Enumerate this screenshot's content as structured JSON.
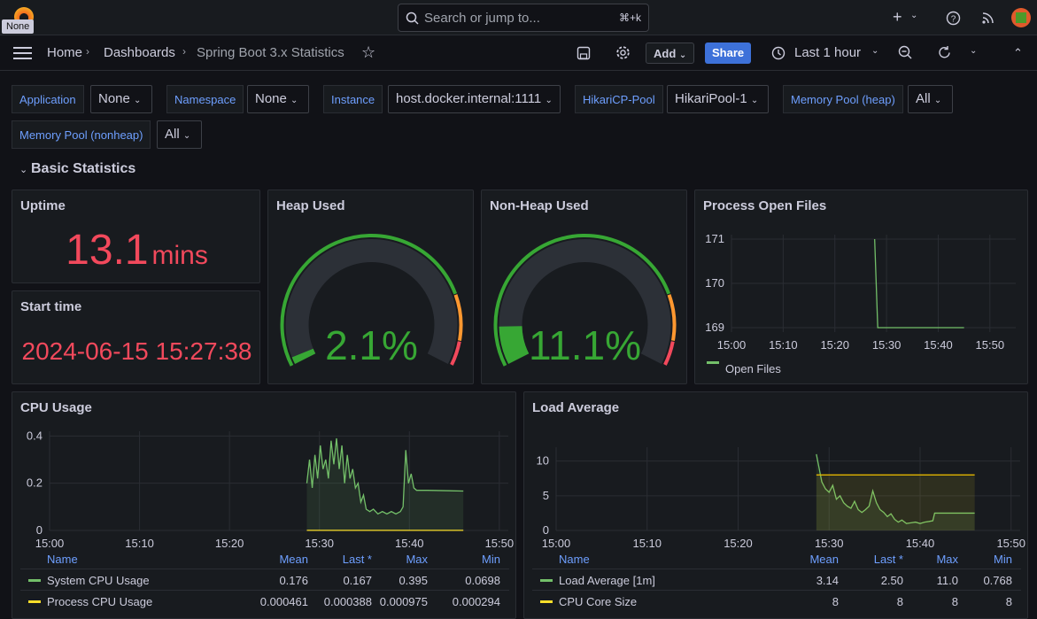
{
  "tooltip": "None",
  "search": {
    "placeholder": "Search or jump to...",
    "shortcut": "⌘+k"
  },
  "breadcrumb": {
    "home": "Home",
    "dashboards": "Dashboards",
    "current": "Spring Boot 3.x Statistics"
  },
  "toolbar": {
    "add": "Add",
    "share": "Share",
    "time_range": "Last 1 hour"
  },
  "variables": [
    {
      "label": "Application",
      "value": "None"
    },
    {
      "label": "Namespace",
      "value": "None"
    },
    {
      "label": "Instance",
      "value": "host.docker.internal:1111"
    },
    {
      "label": "HikariCP-Pool",
      "value": "HikariPool-1"
    },
    {
      "label": "Memory Pool (heap)",
      "value": "All"
    },
    {
      "label": "Memory Pool (nonheap)",
      "value": "All"
    }
  ],
  "row_title": "Basic Statistics",
  "panels": {
    "uptime": {
      "title": "Uptime",
      "value": "13.1",
      "unit": "mins"
    },
    "start_time": {
      "title": "Start time",
      "value": "2024-06-15 15:27:38"
    },
    "heap": {
      "title": "Heap Used",
      "value": "2.1%",
      "percent": 2.1
    },
    "nonheap": {
      "title": "Non-Heap Used",
      "value": "11.1%",
      "percent": 11.1
    },
    "open_files": {
      "title": "Process Open Files",
      "legend": "Open Files"
    },
    "cpu": {
      "title": "CPU Usage"
    },
    "load": {
      "title": "Load Average"
    }
  },
  "colors": {
    "green": "#73bf69",
    "yellow": "#fade2a",
    "red": "#f2495c",
    "blue": "#6e9fff",
    "orange": "#ff9830"
  },
  "chart_data": [
    {
      "type": "line",
      "title": "Process Open Files",
      "x": [
        "15:00",
        "15:10",
        "15:20",
        "15:30",
        "15:40",
        "15:50"
      ],
      "yticks": [
        169,
        170,
        171
      ],
      "ylim": [
        168.9,
        171.1
      ],
      "xlim_minutes": [
        0,
        50
      ],
      "series": [
        {
          "name": "Open Files",
          "points": [
            [
              27.7,
              171
            ],
            [
              28.3,
              169
            ],
            [
              45,
              169
            ]
          ]
        }
      ]
    },
    {
      "type": "line",
      "title": "CPU Usage",
      "x": [
        "15:00",
        "15:10",
        "15:20",
        "15:30",
        "15:40",
        "15:50"
      ],
      "yticks": [
        "0",
        "0.2",
        "0.4"
      ],
      "ylim": [
        0,
        0.42
      ],
      "xlim_minutes": [
        0,
        51
      ],
      "legend_headers": [
        "Name",
        "Mean",
        "Last *",
        "Max",
        "Min"
      ],
      "series": [
        {
          "name": "System CPU Usage",
          "mean": "0.176",
          "last": "0.167",
          "max": "0.395",
          "min": "0.0698",
          "points": [
            [
              28.6,
              0.2
            ],
            [
              28.9,
              0.3
            ],
            [
              29.2,
              0.18
            ],
            [
              29.5,
              0.32
            ],
            [
              29.8,
              0.22
            ],
            [
              30.1,
              0.36
            ],
            [
              30.4,
              0.26
            ],
            [
              30.7,
              0.3
            ],
            [
              31.0,
              0.22
            ],
            [
              31.3,
              0.38
            ],
            [
              31.6,
              0.28
            ],
            [
              31.9,
              0.39
            ],
            [
              32.2,
              0.26
            ],
            [
              32.5,
              0.36
            ],
            [
              32.8,
              0.2
            ],
            [
              33.1,
              0.32
            ],
            [
              33.4,
              0.22
            ],
            [
              33.7,
              0.26
            ],
            [
              34.0,
              0.18
            ],
            [
              34.3,
              0.2
            ],
            [
              34.6,
              0.12
            ],
            [
              34.9,
              0.15
            ],
            [
              35.2,
              0.09
            ],
            [
              35.6,
              0.08
            ],
            [
              36.0,
              0.09
            ],
            [
              36.5,
              0.07
            ],
            [
              37.0,
              0.08
            ],
            [
              37.5,
              0.07
            ],
            [
              38.0,
              0.08
            ],
            [
              38.5,
              0.07
            ],
            [
              39.0,
              0.08
            ],
            [
              39.3,
              0.1
            ],
            [
              39.6,
              0.34
            ],
            [
              39.9,
              0.2
            ],
            [
              40.2,
              0.24
            ],
            [
              40.5,
              0.18
            ],
            [
              40.8,
              0.17
            ],
            [
              42,
              0.17
            ],
            [
              46,
              0.167
            ]
          ]
        },
        {
          "name": "Process CPU Usage",
          "mean": "0.000461",
          "last": "0.000388",
          "max": "0.000975",
          "min": "0.000294",
          "points": [
            [
              28.6,
              0.0005
            ],
            [
              46,
              0.0004
            ]
          ]
        }
      ]
    },
    {
      "type": "line",
      "title": "Load Average",
      "x": [
        "15:00",
        "15:10",
        "15:20",
        "15:30",
        "15:40",
        "15:50"
      ],
      "yticks": [
        "0",
        "5",
        "10"
      ],
      "ylim": [
        0,
        12
      ],
      "xlim_minutes": [
        0,
        51
      ],
      "legend_headers": [
        "Name",
        "Mean",
        "Last *",
        "Max",
        "Min"
      ],
      "series": [
        {
          "name": "Load Average [1m]",
          "mean": "3.14",
          "last": "2.50",
          "max": "11.0",
          "min": "0.768",
          "points": [
            [
              28.6,
              11
            ],
            [
              28.9,
              9
            ],
            [
              29.2,
              7
            ],
            [
              29.6,
              6
            ],
            [
              30.0,
              5.5
            ],
            [
              30.4,
              6.5
            ],
            [
              30.8,
              4.5
            ],
            [
              31.2,
              5
            ],
            [
              31.6,
              4
            ],
            [
              32,
              3.5
            ],
            [
              32.4,
              3.2
            ],
            [
              32.8,
              4.2
            ],
            [
              33.2,
              3
            ],
            [
              33.6,
              2.6
            ],
            [
              34.0,
              3
            ],
            [
              34.4,
              3.5
            ],
            [
              34.8,
              5.7
            ],
            [
              35.2,
              4
            ],
            [
              35.6,
              3
            ],
            [
              36,
              2.6
            ],
            [
              36.4,
              2
            ],
            [
              36.8,
              2.4
            ],
            [
              37.2,
              1.6
            ],
            [
              37.6,
              1.2
            ],
            [
              38,
              1.5
            ],
            [
              38.5,
              1
            ],
            [
              39,
              1.1
            ],
            [
              39.5,
              1.2
            ],
            [
              40,
              1
            ],
            [
              40.5,
              1.2
            ],
            [
              41,
              1.3
            ],
            [
              41.4,
              1.4
            ],
            [
              41.6,
              2.5
            ],
            [
              46,
              2.5
            ]
          ]
        },
        {
          "name": "CPU Core Size",
          "mean": "8",
          "last": "8",
          "max": "8",
          "min": "8",
          "points": [
            [
              28.6,
              8
            ],
            [
              46,
              8
            ]
          ]
        }
      ]
    }
  ]
}
